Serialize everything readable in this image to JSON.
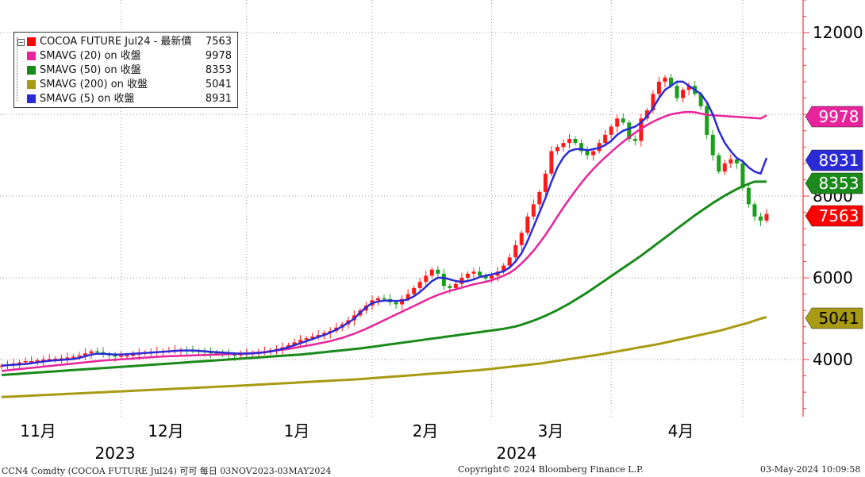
{
  "chart_data": {
    "type": "candlestick",
    "yaxis": {
      "ticks": [
        4000,
        6000,
        8000,
        12000
      ],
      "position": "right",
      "ylim": [
        2600,
        12800
      ]
    },
    "xaxis": {
      "month_labels": [
        "11月",
        "12月",
        "1月",
        "2月",
        "3月",
        "4月"
      ],
      "year_labels": [
        "2023",
        "2024"
      ]
    },
    "grid": true,
    "legend": {
      "placement": "top-left",
      "entries": [
        {
          "name": "COCOA FUTURE Jul24 - 最新價",
          "value": "7563",
          "color": "#ff0000"
        },
        {
          "name": "SMAVG (20)  on 收盤",
          "value": "9978",
          "color": "#e8239b"
        },
        {
          "name": "SMAVG (50)  on 收盤",
          "value": "8353",
          "color": "#1a8a1a"
        },
        {
          "name": "SMAVG (200)  on 收盤",
          "value": "5041",
          "color": "#a89a12"
        },
        {
          "name": "SMAVG (5)  on 收盤",
          "value": "8931",
          "color": "#2a2ad8"
        }
      ]
    },
    "value_tags": [
      {
        "value": 9978,
        "label": "9978",
        "color": "#e8239b",
        "text_color": "#ffffff"
      },
      {
        "value": 8931,
        "label": "8931",
        "color": "#2a2ad8",
        "text_color": "#ffffff"
      },
      {
        "value": 8353,
        "label": "8353",
        "color": "#1a8a1a",
        "text_color": "#ffffff"
      },
      {
        "value": 7563,
        "label": "7563",
        "color": "#ff0000",
        "text_color": "#ffffff"
      },
      {
        "value": 5041,
        "label": "5041",
        "color": "#a89a12",
        "text_color": "#000000"
      }
    ],
    "sessions": 129,
    "price_close": [
      3850,
      3880,
      3900,
      3930,
      3960,
      3960,
      3980,
      4000,
      4010,
      4020,
      4030,
      4050,
      4070,
      4100,
      4150,
      4200,
      4180,
      4130,
      4100,
      4080,
      4090,
      4100,
      4120,
      4150,
      4170,
      4180,
      4200,
      4210,
      4220,
      4230,
      4230,
      4220,
      4210,
      4200,
      4180,
      4170,
      4150,
      4140,
      4120,
      4100,
      4130,
      4150,
      4160,
      4170,
      4200,
      4230,
      4260,
      4300,
      4350,
      4420,
      4480,
      4520,
      4560,
      4600,
      4650,
      4700,
      4780,
      4860,
      4960,
      5080,
      5200,
      5320,
      5450,
      5500,
      5480,
      5400,
      5350,
      5480,
      5600,
      5750,
      5900,
      6050,
      6200,
      6100,
      5800,
      5750,
      5850,
      6000,
      6100,
      6150,
      6050,
      5980,
      6050,
      6150,
      6300,
      6500,
      6800,
      7100,
      7500,
      7800,
      8100,
      8550,
      9100,
      9200,
      9300,
      9400,
      9300,
      9100,
      9000,
      9100,
      9300,
      9500,
      9700,
      9900,
      9800,
      9400,
      9350,
      9900,
      10100,
      10500,
      10800,
      10900,
      10700,
      10400,
      10600,
      10700,
      10500,
      10200,
      9500,
      9000,
      8600,
      8800,
      8900,
      8800,
      8200,
      7800,
      7500,
      7400,
      7563
    ],
    "sma5": [
      3850,
      3860,
      3870,
      3880,
      3890,
      3910,
      3930,
      3950,
      3970,
      3980,
      3990,
      4000,
      4010,
      4040,
      4080,
      4120,
      4140,
      4140,
      4130,
      4120,
      4120,
      4130,
      4140,
      4150,
      4160,
      4170,
      4180,
      4190,
      4200,
      4210,
      4220,
      4220,
      4220,
      4210,
      4200,
      4190,
      4180,
      4170,
      4160,
      4150,
      4145,
      4145,
      4150,
      4160,
      4175,
      4195,
      4225,
      4260,
      4300,
      4350,
      4400,
      4450,
      4500,
      4550,
      4600,
      4660,
      4730,
      4810,
      4900,
      5000,
      5150,
      5280,
      5380,
      5420,
      5440,
      5440,
      5430,
      5440,
      5470,
      5550,
      5650,
      5780,
      5920,
      6000,
      6000,
      5960,
      5920,
      5900,
      5920,
      5960,
      6020,
      6050,
      6080,
      6120,
      6160,
      6250,
      6400,
      6600,
      6900,
      7250,
      7600,
      7950,
      8350,
      8700,
      8950,
      9100,
      9150,
      9150,
      9120,
      9150,
      9180,
      9250,
      9350,
      9500,
      9600,
      9650,
      9700,
      9800,
      9950,
      10150,
      10400,
      10600,
      10700,
      10800,
      10800,
      10700,
      10600,
      10500,
      10300,
      10000,
      9600,
      9300,
      9100,
      8931,
      8850,
      8700,
      8600,
      8550,
      8931
    ],
    "sma20": [
      3720,
      3735,
      3750,
      3765,
      3780,
      3795,
      3810,
      3825,
      3840,
      3855,
      3870,
      3885,
      3900,
      3915,
      3930,
      3945,
      3960,
      3975,
      3985,
      3995,
      4005,
      4015,
      4025,
      4035,
      4045,
      4055,
      4065,
      4075,
      4080,
      4085,
      4090,
      4095,
      4100,
      4105,
      4110,
      4115,
      4120,
      4125,
      4130,
      4135,
      4140,
      4150,
      4160,
      4170,
      4180,
      4200,
      4220,
      4240,
      4260,
      4285,
      4310,
      4335,
      4360,
      4390,
      4420,
      4450,
      4490,
      4530,
      4580,
      4630,
      4690,
      4750,
      4820,
      4890,
      4960,
      5030,
      5100,
      5170,
      5240,
      5310,
      5380,
      5450,
      5520,
      5580,
      5630,
      5680,
      5720,
      5760,
      5800,
      5840,
      5870,
      5900,
      5940,
      5990,
      6050,
      6120,
      6220,
      6350,
      6500,
      6660,
      6850,
      7050,
      7270,
      7500,
      7720,
      7930,
      8130,
      8320,
      8500,
      8660,
      8810,
      8950,
      9080,
      9210,
      9330,
      9440,
      9550,
      9650,
      9740,
      9820,
      9890,
      9950,
      10000,
      10030,
      10050,
      10060,
      10050,
      10020,
      9990,
      9978,
      9970,
      9960,
      9950,
      9940,
      9930,
      9920,
      9910,
      9900,
      9978
    ],
    "sma50": [
      3620,
      3630,
      3640,
      3650,
      3660,
      3670,
      3680,
      3690,
      3700,
      3710,
      3720,
      3730,
      3740,
      3750,
      3760,
      3770,
      3780,
      3790,
      3800,
      3810,
      3820,
      3830,
      3840,
      3850,
      3860,
      3870,
      3880,
      3890,
      3900,
      3910,
      3920,
      3930,
      3940,
      3950,
      3960,
      3970,
      3980,
      3990,
      4000,
      4010,
      4020,
      4030,
      4040,
      4050,
      4060,
      4070,
      4080,
      4090,
      4100,
      4110,
      4120,
      4135,
      4150,
      4165,
      4180,
      4195,
      4210,
      4225,
      4240,
      4255,
      4270,
      4290,
      4310,
      4330,
      4350,
      4370,
      4390,
      4410,
      4430,
      4450,
      4470,
      4490,
      4510,
      4530,
      4550,
      4570,
      4590,
      4610,
      4630,
      4650,
      4670,
      4690,
      4710,
      4730,
      4750,
      4780,
      4810,
      4850,
      4900,
      4950,
      5010,
      5070,
      5140,
      5210,
      5290,
      5370,
      5460,
      5550,
      5640,
      5740,
      5840,
      5940,
      6040,
      6140,
      6240,
      6340,
      6440,
      6540,
      6650,
      6760,
      6870,
      6980,
      7090,
      7200,
      7310,
      7420,
      7530,
      7630,
      7730,
      7830,
      7920,
      8010,
      8090,
      8170,
      8240,
      8300,
      8353,
      8353,
      8353
    ],
    "sma200": [
      3080,
      3087,
      3094,
      3101,
      3108,
      3115,
      3122,
      3129,
      3136,
      3143,
      3150,
      3157,
      3164,
      3171,
      3178,
      3185,
      3192,
      3199,
      3206,
      3213,
      3220,
      3227,
      3234,
      3241,
      3248,
      3255,
      3262,
      3269,
      3276,
      3283,
      3290,
      3297,
      3304,
      3311,
      3318,
      3325,
      3332,
      3339,
      3346,
      3353,
      3360,
      3368,
      3376,
      3384,
      3392,
      3400,
      3408,
      3416,
      3424,
      3432,
      3440,
      3448,
      3456,
      3464,
      3472,
      3480,
      3488,
      3496,
      3504,
      3512,
      3520,
      3531,
      3542,
      3553,
      3564,
      3575,
      3586,
      3597,
      3608,
      3619,
      3630,
      3641,
      3652,
      3663,
      3674,
      3685,
      3696,
      3707,
      3718,
      3729,
      3740,
      3756,
      3772,
      3788,
      3804,
      3820,
      3836,
      3852,
      3868,
      3884,
      3900,
      3922,
      3944,
      3966,
      3988,
      4010,
      4032,
      4054,
      4076,
      4098,
      4120,
      4146,
      4172,
      4198,
      4224,
      4250,
      4276,
      4302,
      4328,
      4354,
      4380,
      4412,
      4444,
      4476,
      4508,
      4540,
      4572,
      4604,
      4636,
      4668,
      4700,
      4740,
      4780,
      4820,
      4860,
      4900,
      4950,
      5000,
      5041
    ]
  },
  "footer": {
    "left": "CCN4 Comdty (COCOA FUTURE       Jul24) 可可  每日 03NOV2023-03MAY2024",
    "center": "Copyright© 2024 Bloomberg Finance L.P.",
    "right": "03-May-2024 10:09:58"
  }
}
